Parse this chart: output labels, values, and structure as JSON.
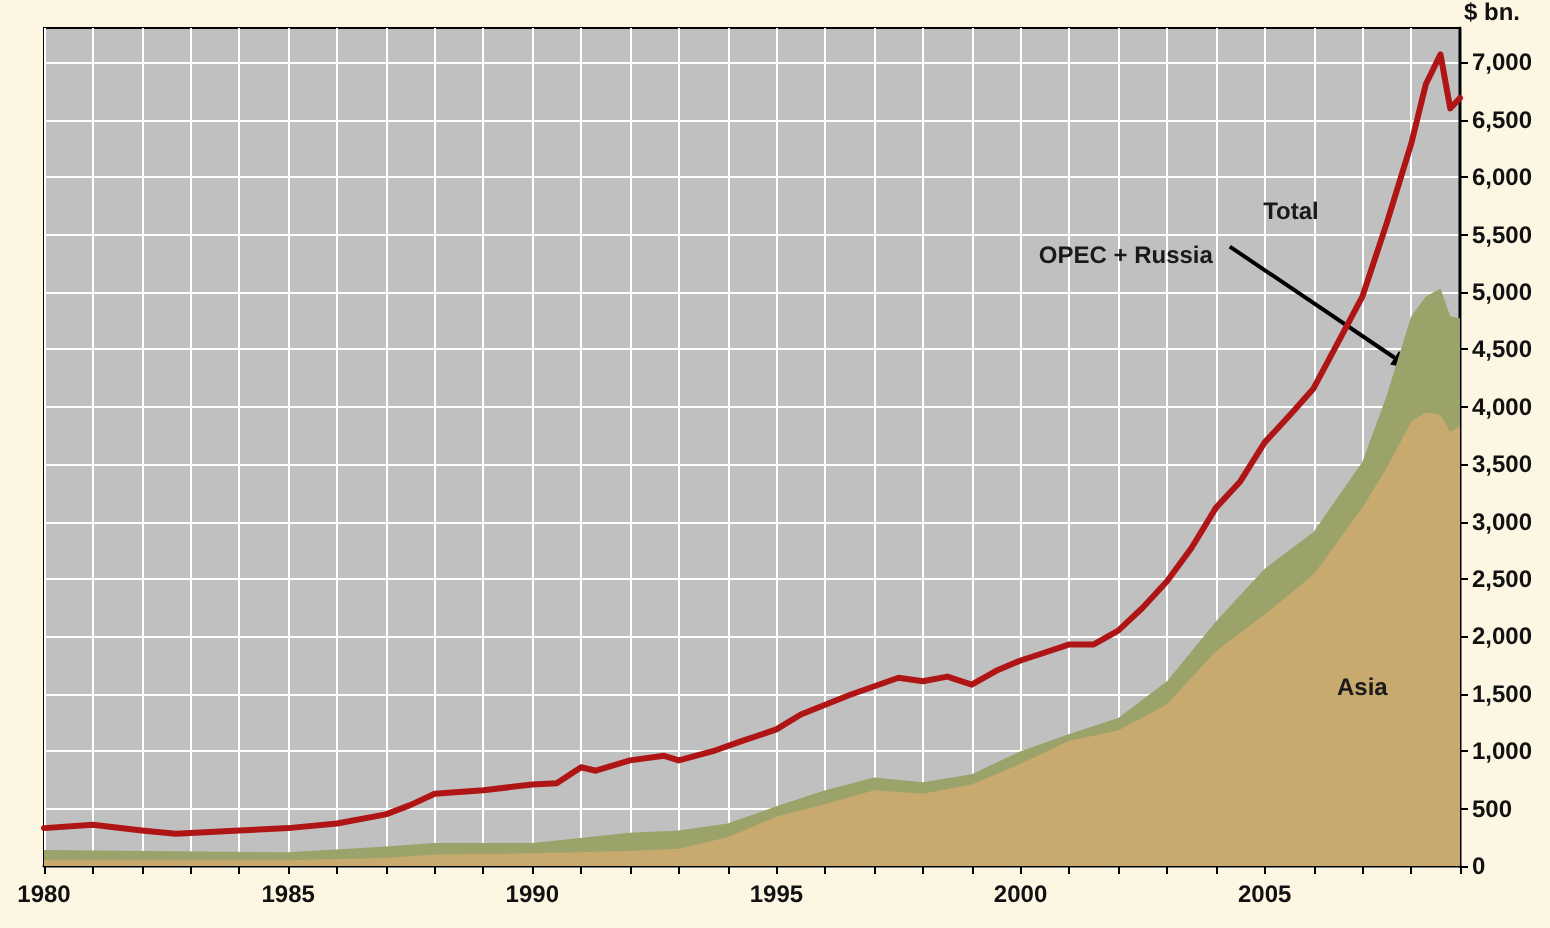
{
  "chart_data": {
    "type": "area",
    "ylabel": "$ bn.",
    "stacked": true,
    "grid": true,
    "legend": false,
    "marker": "none",
    "x": [
      1980,
      1985,
      1987,
      1988,
      1990,
      1992,
      1993,
      1994,
      1995,
      1996,
      1997,
      1998,
      1999,
      2000,
      2001,
      2002,
      2003,
      2004,
      2005,
      2006,
      2007,
      2007.5,
      2008,
      2008.3,
      2008.6,
      2008.8,
      2009
    ],
    "series": [
      {
        "name": "Asia",
        "color": "#c8aa6e",
        "values": [
          50,
          50,
          70,
          100,
          110,
          130,
          150,
          250,
          430,
          540,
          660,
          630,
          710,
          890,
          1090,
          1180,
          1410,
          1870,
          2190,
          2540,
          3120,
          3470,
          3870,
          3950,
          3930,
          3780,
          3830
        ]
      },
      {
        "name": "OPEC + Russia",
        "color": "#9ba36b",
        "values": [
          90,
          70,
          100,
          100,
          90,
          160,
          160,
          120,
          90,
          120,
          110,
          100,
          90,
          110,
          60,
          110,
          200,
          260,
          400,
          370,
          400,
          630,
          920,
          1010,
          1100,
          1010,
          940
        ]
      },
      {
        "name": "Total",
        "type": "line",
        "color": "#b01515",
        "x": [
          1980,
          1981,
          1982,
          1982.7,
          1984,
          1985,
          1986,
          1987,
          1987.5,
          1988,
          1989,
          1990,
          1990.5,
          1991,
          1991.3,
          1992,
          1992.7,
          1993,
          1993.7,
          1994.3,
          1995,
          1995.5,
          1996.5,
          1997.5,
          1998,
          1998.5,
          1999,
          1999.5,
          2000,
          2000.5,
          2001,
          2001.5,
          2002,
          2002.5,
          2003,
          2003.5,
          2004,
          2004.5,
          2005,
          2005.5,
          2006,
          2006.5,
          2007,
          2007.5,
          2008,
          2008.3,
          2008.6,
          2008.8,
          2009
        ],
        "values": [
          330,
          360,
          310,
          280,
          310,
          330,
          370,
          450,
          530,
          630,
          660,
          710,
          720,
          860,
          830,
          920,
          960,
          920,
          1000,
          1090,
          1190,
          1320,
          1490,
          1640,
          1610,
          1650,
          1580,
          1700,
          1790,
          1860,
          1930,
          1930,
          2050,
          2250,
          2480,
          2770,
          3120,
          3350,
          3690,
          3920,
          4160,
          4560,
          4960,
          5600,
          6290,
          6810,
          7070,
          6600,
          6690
        ]
      }
    ],
    "xlim": [
      1980,
      2009
    ],
    "xticks": [
      1980,
      {
        "value": 1981,
        "label": null
      },
      {
        "value": 1982,
        "label": null
      },
      {
        "value": 1983,
        "label": null
      },
      {
        "value": 1984,
        "label": null
      },
      1985,
      {
        "value": 1986,
        "label": null
      },
      {
        "value": 1987,
        "label": null
      },
      {
        "value": 1988,
        "label": null
      },
      {
        "value": 1989,
        "label": null
      },
      1990,
      {
        "value": 1991,
        "label": null
      },
      {
        "value": 1992,
        "label": null
      },
      {
        "value": 1993,
        "label": null
      },
      {
        "value": 1994,
        "label": null
      },
      1995,
      {
        "value": 1996,
        "label": null
      },
      {
        "value": 1997,
        "label": null
      },
      {
        "value": 1998,
        "label": null
      },
      {
        "value": 1999,
        "label": null
      },
      2000,
      {
        "value": 2001,
        "label": null
      },
      {
        "value": 2002,
        "label": null
      },
      {
        "value": 2003,
        "label": null
      },
      {
        "value": 2004,
        "label": null
      },
      2005,
      {
        "value": 2006,
        "label": null
      },
      {
        "value": 2007,
        "label": null
      },
      {
        "value": 2008,
        "label": null
      },
      {
        "value": 2009,
        "label": null
      }
    ],
    "ylim": [
      0,
      7300
    ],
    "yticks": [
      0,
      500,
      {
        "value": 1000,
        "label": "1,000"
      },
      {
        "value": 1500,
        "label": "1,500"
      },
      {
        "value": 2000,
        "label": "2,000"
      },
      {
        "value": 2500,
        "label": "2,500"
      },
      {
        "value": 3000,
        "label": "3,000"
      },
      {
        "value": 3500,
        "label": "3,500"
      },
      {
        "value": 4000,
        "label": "4,000"
      },
      {
        "value": 4500,
        "label": "4,500"
      },
      {
        "value": 5000,
        "label": "5,000"
      },
      {
        "value": 5500,
        "label": "5,500"
      },
      {
        "value": 6000,
        "label": "6,000"
      },
      {
        "value": 6500,
        "label": "6,500"
      },
      {
        "value": 7000,
        "label": "7,000"
      }
    ]
  }
}
